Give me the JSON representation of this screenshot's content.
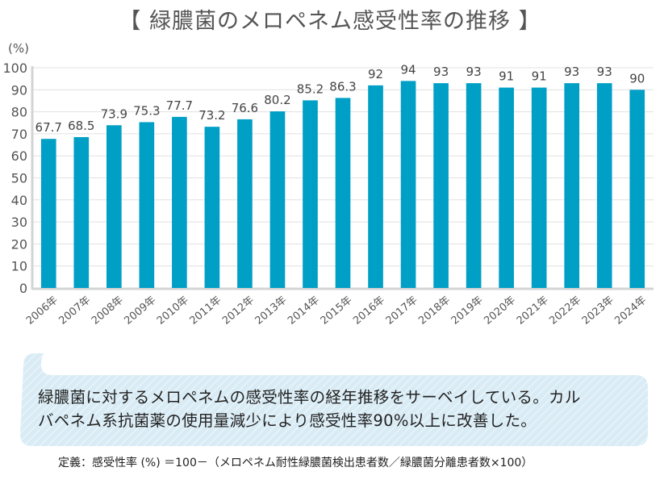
{
  "title": "【 緑膿菌のメロペネム感受性率の推移 】",
  "chart_data": {
    "type": "bar",
    "title": "緑膿菌のメロペネム感受性率の推移",
    "xlabel": "",
    "ylabel": "(%)",
    "ylim": [
      0,
      100
    ],
    "yticks": [
      0,
      10,
      20,
      30,
      40,
      50,
      60,
      70,
      80,
      90,
      100
    ],
    "grid": true,
    "bar_color": "#009fc6",
    "categories": [
      "2006年",
      "2007年",
      "2008年",
      "2009年",
      "2010年",
      "2011年",
      "2012年",
      "2013年",
      "2014年",
      "2015年",
      "2016年",
      "2017年",
      "2018年",
      "2019年",
      "2020年",
      "2021年",
      "2022年",
      "2023年",
      "2024年"
    ],
    "values": [
      67.7,
      68.5,
      73.9,
      75.3,
      77.7,
      73.2,
      76.6,
      80.2,
      85.2,
      86.3,
      92,
      94,
      93,
      93,
      91,
      91,
      93,
      93,
      90
    ],
    "data_labels": [
      "67.7",
      "68.5",
      "73.9",
      "75.3",
      "77.7",
      "73.2",
      "76.6",
      "80.2",
      "85.2",
      "86.3",
      "92",
      "94",
      "93",
      "93",
      "91",
      "91",
      "93",
      "93",
      "90"
    ]
  },
  "callout": {
    "lines": [
      "緑膿菌に対するメロペネムの感受性率の経年推移をサーベイしている。カル",
      "バペネム系抗菌薬の使用量減少により感受性率90%以上に改善した。"
    ],
    "fill_color": "#d9ecf5"
  },
  "definition": "定義：感受性率 (%) ＝100－（メロペネム耐性緑膿菌検出患者数／緑膿菌分離患者数×100）"
}
